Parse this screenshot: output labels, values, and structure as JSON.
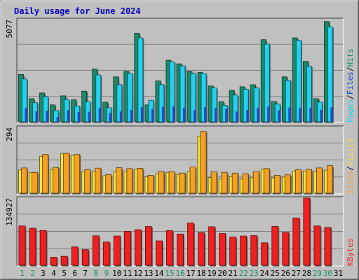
{
  "colors": {
    "pages": "#1a8a6a",
    "files": "#22d2f0",
    "hits": "#1a8a6a",
    "visits": "#f5e23a",
    "sites": "#f5a020",
    "kbytes": "#f02020",
    "title": "#0000c0",
    "weekend": "#1a8a6a",
    "weekday": "#000000",
    "background": "#c0c0c0"
  },
  "chart_data": [
    {
      "type": "bar",
      "title": "Daily usage for June 2024",
      "ymax_label": "5077",
      "legend": [
        "Pages",
        "Files",
        "Hits"
      ],
      "legend_separators": [
        "/",
        "/"
      ],
      "categories": [
        "1",
        "2",
        "3",
        "4",
        "5",
        "6",
        "7",
        "8",
        "9",
        "10",
        "11",
        "12",
        "13",
        "14",
        "15",
        "16",
        "17",
        "18",
        "19",
        "20",
        "21",
        "22",
        "23",
        "24",
        "25",
        "26",
        "27",
        "28",
        "29",
        "30",
        "31"
      ],
      "weekend_days": [
        "1",
        "2",
        "8",
        "9",
        "15",
        "16",
        "22",
        "23",
        "29",
        "30"
      ],
      "ylim": [
        0,
        5077
      ],
      "series": [
        {
          "name": "Hits",
          "values": [
            2350,
            1150,
            1430,
            840,
            1290,
            1090,
            1520,
            2620,
            970,
            2230,
            2500,
            4400,
            840,
            2030,
            3060,
            2880,
            2500,
            2450,
            1780,
            1000,
            1560,
            1740,
            1840,
            4080,
            1010,
            2230,
            4170,
            3000,
            1150,
            4980,
            0
          ]
        },
        {
          "name": "Files",
          "values": [
            2130,
            950,
            1250,
            560,
            1110,
            780,
            1000,
            2330,
            700,
            1850,
            2400,
            4170,
            1070,
            1850,
            2980,
            2780,
            2400,
            2400,
            1680,
            820,
            1330,
            1620,
            1680,
            3860,
            880,
            2060,
            4050,
            2760,
            980,
            4710,
            0
          ]
        },
        {
          "name": "Pages",
          "values": [
            680,
            520,
            550,
            240,
            580,
            480,
            500,
            690,
            440,
            510,
            590,
            720,
            640,
            730,
            770,
            690,
            590,
            720,
            690,
            640,
            510,
            590,
            700,
            750,
            580,
            710,
            680,
            690,
            600,
            720,
            0
          ]
        }
      ]
    },
    {
      "type": "bar",
      "ymax_label": "294",
      "legend": [
        "Sites",
        "Visits"
      ],
      "legend_separators": [
        "/"
      ],
      "categories": [
        "1",
        "2",
        "3",
        "4",
        "5",
        "6",
        "7",
        "8",
        "9",
        "10",
        "11",
        "12",
        "13",
        "14",
        "15",
        "16",
        "17",
        "18",
        "19",
        "20",
        "21",
        "22",
        "23",
        "24",
        "25",
        "26",
        "27",
        "28",
        "29",
        "30",
        "31"
      ],
      "ylim": [
        0,
        294
      ],
      "series": [
        {
          "name": "Visits",
          "values": [
            104,
            93,
            165,
            106,
            178,
            169,
            98,
            98,
            78,
            95,
            97,
            107,
            73,
            86,
            93,
            84,
            96,
            255,
            70,
            63,
            74,
            63,
            69,
            108,
            69,
            72,
            98,
            99,
            96,
            103,
            0
          ]
        },
        {
          "name": "Sites",
          "values": [
            113,
            93,
            173,
            115,
            178,
            173,
            105,
            112,
            83,
            114,
            110,
            111,
            80,
            97,
            96,
            90,
            117,
            276,
            95,
            93,
            90,
            87,
            97,
            110,
            80,
            82,
            105,
            106,
            113,
            123,
            0
          ]
        }
      ]
    },
    {
      "type": "bar",
      "ymax_label": "134927",
      "legend": [
        "KBytes"
      ],
      "categories": [
        "1",
        "2",
        "3",
        "4",
        "5",
        "6",
        "7",
        "8",
        "9",
        "10",
        "11",
        "12",
        "13",
        "14",
        "15",
        "16",
        "17",
        "18",
        "19",
        "20",
        "21",
        "22",
        "23",
        "24",
        "25",
        "26",
        "27",
        "28",
        "29",
        "30",
        "31"
      ],
      "ylim": [
        0,
        134927
      ],
      "series": [
        {
          "name": "KBytes",
          "values": [
            79000,
            74500,
            69700,
            16100,
            18100,
            36900,
            31400,
            59200,
            46700,
            58800,
            68100,
            71500,
            77900,
            49000,
            69600,
            62800,
            84800,
            65500,
            77400,
            63900,
            56800,
            58800,
            59600,
            45200,
            78000,
            66300,
            95000,
            135000,
            79000,
            76000,
            0
          ]
        }
      ]
    }
  ]
}
